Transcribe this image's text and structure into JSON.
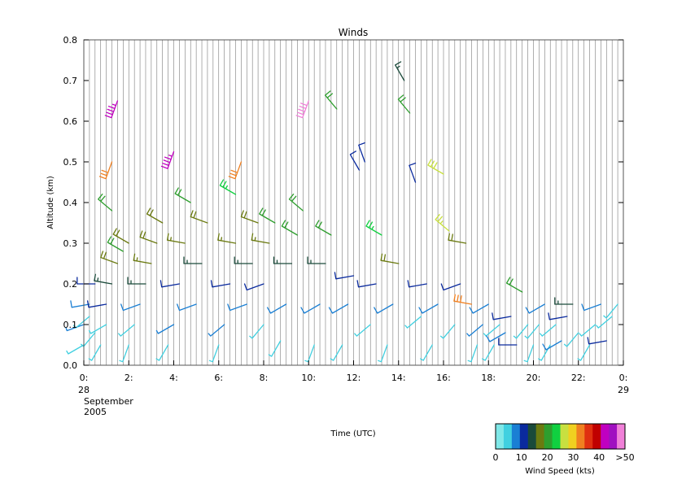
{
  "chart_data": {
    "type": "scatter",
    "title": "Winds",
    "xlabel": "Time (UTC)",
    "ylabel": "Altitude (km)",
    "xlim": [
      0,
      24
    ],
    "ylim": [
      0,
      0.8
    ],
    "x_ticks": [
      0,
      2,
      4,
      6,
      8,
      10,
      12,
      14,
      16,
      18,
      20,
      22,
      24
    ],
    "x_tick_labels": [
      "0:",
      "2:",
      "4:",
      "6:",
      "8:",
      "10:",
      "12:",
      "14:",
      "16:",
      "18:",
      "20:",
      "22:",
      "0:"
    ],
    "y_ticks": [
      0,
      0.1,
      0.2,
      0.3,
      0.4,
      0.5,
      0.6,
      0.7,
      0.8
    ],
    "y_tick_labels": [
      "0.0",
      "0.1",
      "0.2",
      "0.3",
      "0.4",
      "0.5",
      "0.6",
      "0.7",
      "0.8"
    ],
    "date_labels": {
      "start_day": "28",
      "month": "September",
      "year": "2005",
      "end_day": "29"
    },
    "grid": "vertical lines at each profile time",
    "profile_interval_hours": 0.25,
    "colorbar": {
      "label": "Wind Speed (kts)",
      "tick_labels": [
        "0",
        "10",
        "20",
        "30",
        "40",
        ">50"
      ],
      "colors": [
        "#80e8e8",
        "#40d0e0",
        "#1a7fd4",
        "#0a2a9e",
        "#1a4a3a",
        "#6b7a10",
        "#2e9e2e",
        "#10d040",
        "#c8e040",
        "#f0d020",
        "#f08020",
        "#e03010",
        "#c00000",
        "#c000c0",
        "#a010c0",
        "#f080d8"
      ]
    },
    "series": [
      {
        "barbs": [
          [
            0.0,
            0.05,
            4,
            240
          ],
          [
            0.0,
            0.1,
            7,
            250
          ],
          [
            0.25,
            0.15,
            9,
            260
          ],
          [
            0.5,
            0.2,
            12,
            270
          ],
          [
            0.25,
            0.12,
            6,
            230
          ],
          [
            0.5,
            0.08,
            5,
            220
          ],
          [
            0.75,
            0.05,
            4,
            210
          ],
          [
            1.0,
            0.1,
            6,
            240
          ],
          [
            1.0,
            0.15,
            10,
            260
          ],
          [
            1.25,
            0.2,
            14,
            280
          ],
          [
            1.5,
            0.25,
            18,
            290
          ],
          [
            1.75,
            0.28,
            20,
            300
          ],
          [
            1.25,
            0.38,
            22,
            310
          ],
          [
            1.25,
            0.5,
            32,
            200
          ],
          [
            1.5,
            0.65,
            44,
            200
          ],
          [
            2.0,
            0.3,
            18,
            300
          ],
          [
            2.0,
            0.05,
            5,
            200
          ],
          [
            2.25,
            0.1,
            6,
            230
          ],
          [
            2.5,
            0.15,
            9,
            250
          ],
          [
            2.75,
            0.2,
            13,
            270
          ],
          [
            3.0,
            0.25,
            16,
            280
          ],
          [
            3.25,
            0.3,
            18,
            290
          ],
          [
            3.5,
            0.35,
            18,
            300
          ],
          [
            3.75,
            0.05,
            4,
            210
          ],
          [
            4.0,
            0.1,
            7,
            240
          ],
          [
            4.25,
            0.2,
            12,
            260
          ],
          [
            4.5,
            0.3,
            16,
            280
          ],
          [
            4.75,
            0.4,
            20,
            300
          ],
          [
            4.0,
            0.525,
            44,
            200
          ],
          [
            5.0,
            0.15,
            9,
            250
          ],
          [
            5.25,
            0.25,
            14,
            270
          ],
          [
            5.5,
            0.35,
            18,
            290
          ],
          [
            6.0,
            0.05,
            4,
            200
          ],
          [
            6.25,
            0.1,
            7,
            230
          ],
          [
            6.5,
            0.2,
            12,
            260
          ],
          [
            6.75,
            0.3,
            16,
            280
          ],
          [
            6.75,
            0.42,
            24,
            300
          ],
          [
            7.0,
            0.5,
            32,
            200
          ],
          [
            7.25,
            0.15,
            9,
            250
          ],
          [
            7.5,
            0.25,
            14,
            270
          ],
          [
            7.75,
            0.35,
            18,
            290
          ],
          [
            8.0,
            0.1,
            6,
            220
          ],
          [
            8.0,
            0.2,
            10,
            250
          ],
          [
            8.25,
            0.3,
            16,
            280
          ],
          [
            8.5,
            0.35,
            22,
            300
          ],
          [
            8.75,
            0.06,
            5,
            210
          ],
          [
            9.0,
            0.15,
            9,
            240
          ],
          [
            9.25,
            0.25,
            14,
            270
          ],
          [
            9.5,
            0.32,
            20,
            300
          ],
          [
            9.75,
            0.38,
            22,
            310
          ],
          [
            10.0,
            0.65,
            48,
            200
          ],
          [
            10.25,
            0.05,
            4,
            200
          ],
          [
            10.5,
            0.15,
            9,
            240
          ],
          [
            10.75,
            0.25,
            14,
            270
          ],
          [
            11.0,
            0.32,
            22,
            300
          ],
          [
            11.25,
            0.63,
            20,
            320
          ],
          [
            11.5,
            0.05,
            4,
            210
          ],
          [
            11.75,
            0.15,
            8,
            240
          ],
          [
            12.0,
            0.22,
            12,
            260
          ],
          [
            12.25,
            0.48,
            12,
            330
          ],
          [
            12.5,
            0.5,
            10,
            340
          ],
          [
            12.75,
            0.1,
            6,
            230
          ],
          [
            13.0,
            0.2,
            12,
            260
          ],
          [
            13.25,
            0.32,
            24,
            300
          ],
          [
            13.5,
            0.05,
            4,
            200
          ],
          [
            13.75,
            0.15,
            9,
            240
          ],
          [
            14.0,
            0.25,
            18,
            280
          ],
          [
            14.25,
            0.7,
            14,
            330
          ],
          [
            14.5,
            0.62,
            20,
            320
          ],
          [
            14.75,
            0.45,
            10,
            340
          ],
          [
            15.0,
            0.12,
            6,
            230
          ],
          [
            15.25,
            0.2,
            11,
            260
          ],
          [
            15.5,
            0.05,
            4,
            210
          ],
          [
            15.75,
            0.15,
            8,
            240
          ],
          [
            16.0,
            0.47,
            28,
            300
          ],
          [
            16.25,
            0.33,
            26,
            310
          ],
          [
            16.5,
            0.1,
            6,
            220
          ],
          [
            16.75,
            0.2,
            10,
            250
          ],
          [
            17.0,
            0.3,
            18,
            280
          ],
          [
            17.25,
            0.15,
            32,
            280
          ],
          [
            17.5,
            0.05,
            4,
            200
          ],
          [
            17.75,
            0.1,
            7,
            230
          ],
          [
            18.0,
            0.15,
            9,
            240
          ],
          [
            18.25,
            0.05,
            4,
            210
          ],
          [
            18.5,
            0.1,
            6,
            230
          ],
          [
            18.75,
            0.08,
            9,
            240
          ],
          [
            19.0,
            0.12,
            11,
            260
          ],
          [
            19.25,
            0.05,
            12,
            270
          ],
          [
            19.5,
            0.18,
            22,
            300
          ],
          [
            19.75,
            0.1,
            6,
            220
          ],
          [
            20.0,
            0.05,
            4,
            200
          ],
          [
            20.25,
            0.1,
            5,
            220
          ],
          [
            20.5,
            0.15,
            8,
            240
          ],
          [
            20.75,
            0.05,
            4,
            210
          ],
          [
            21.0,
            0.1,
            6,
            230
          ],
          [
            21.25,
            0.06,
            9,
            240
          ],
          [
            21.5,
            0.12,
            11,
            260
          ],
          [
            21.75,
            0.15,
            13,
            270
          ],
          [
            22.0,
            0.08,
            5,
            220
          ],
          [
            22.5,
            0.05,
            4,
            210
          ],
          [
            22.75,
            0.1,
            6,
            230
          ],
          [
            23.0,
            0.15,
            9,
            250
          ],
          [
            23.25,
            0.06,
            11,
            260
          ],
          [
            23.5,
            0.12,
            6,
            230
          ],
          [
            23.75,
            0.15,
            5,
            220
          ]
        ]
      }
    ]
  }
}
